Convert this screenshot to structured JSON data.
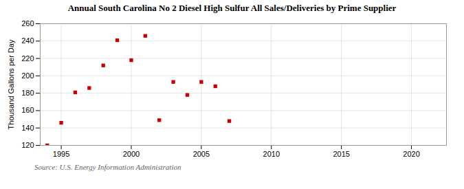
{
  "chart_data": {
    "type": "scatter",
    "title": "Annual South Carolina No 2 Diesel High Sulfur All Sales/Deliveries by Prime Supplier",
    "ylabel": "Thousand Gallons per Day",
    "annotations": [
      "Source: U.S. Energy Information Administration"
    ],
    "x": [
      1994,
      1995,
      1996,
      1997,
      1998,
      1999,
      2000,
      2001,
      2002,
      2003,
      2004,
      2005,
      2006,
      2007
    ],
    "values": [
      120,
      146,
      181,
      186,
      212,
      241,
      218,
      246,
      149,
      193,
      178,
      193,
      188,
      148
    ],
    "color": "#cc0000",
    "marker": "square",
    "xlim": [
      1993.5,
      2022.5
    ],
    "ylim": [
      120,
      260
    ],
    "xticks": [
      1995,
      2000,
      2005,
      2010,
      2015,
      2020
    ],
    "yticks": [
      120,
      140,
      160,
      180,
      200,
      220,
      240,
      260
    ],
    "grid": true
  }
}
